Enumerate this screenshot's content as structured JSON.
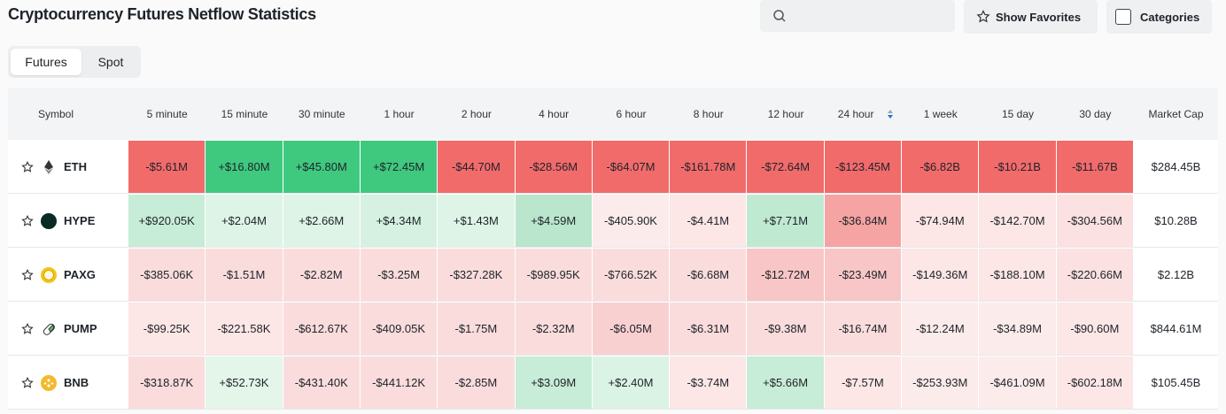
{
  "header": {
    "title": "Cryptocurrency Futures Netflow Statistics",
    "favorites_button": "Show Favorites",
    "categories_button": "Categories"
  },
  "tabs": [
    "Futures",
    "Spot"
  ],
  "table": {
    "columns": [
      "Symbol",
      "5 minute",
      "15 minute",
      "30 minute",
      "1 hour",
      "2 hour",
      "4 hour",
      "6 hour",
      "8 hour",
      "12 hour",
      "24 hour",
      "1 week",
      "15 day",
      "30 day",
      "Market Cap"
    ],
    "rows": [
      {
        "symbol": "ETH",
        "cells": [
          "-$5.61M",
          "+$16.80M",
          "+$45.80M",
          "+$72.45M",
          "-$44.70M",
          "-$28.56M",
          "-$64.07M",
          "-$161.78M",
          "-$72.64M",
          "-$123.45M",
          "-$6.82B",
          "-$10.21B",
          "-$11.67B"
        ],
        "market_cap": "$284.45B",
        "colors": [
          "#f26b6b",
          "#3fc97f",
          "#3fc97f",
          "#3fc97f",
          "#f26b6b",
          "#f26b6b",
          "#f26b6b",
          "#f26b6b",
          "#f26b6b",
          "#f26b6b",
          "#f26b6b",
          "#f26b6b",
          "#f26b6b"
        ]
      },
      {
        "symbol": "HYPE",
        "cells": [
          "+$920.05K",
          "+$2.04M",
          "+$2.66M",
          "+$4.34M",
          "+$1.43M",
          "+$4.59M",
          "-$405.90K",
          "-$4.41M",
          "+$7.71M",
          "-$36.84M",
          "-$74.94M",
          "-$142.70M",
          "-$304.56M"
        ],
        "market_cap": "$10.28B",
        "colors": [
          "#c7ecd7",
          "#def4e7",
          "#def4e7",
          "#d6f1e1",
          "#def4e7",
          "#b9e6cc",
          "#fcebeb",
          "#fce6e6",
          "#c0e9d1",
          "#f5a3a3",
          "#fce6e6",
          "#fce6e6",
          "#fbe1e1"
        ]
      },
      {
        "symbol": "PAXG",
        "cells": [
          "-$385.06K",
          "-$1.51M",
          "-$2.82M",
          "-$3.25M",
          "-$327.28K",
          "-$989.95K",
          "-$766.52K",
          "-$6.68M",
          "-$12.72M",
          "-$23.49M",
          "-$149.36M",
          "-$188.10M",
          "-$220.66M"
        ],
        "market_cap": "$2.12B",
        "colors": [
          "#fadcdc",
          "#fadcdc",
          "#fadcdc",
          "#fadcdc",
          "#fadcdc",
          "#fadcdc",
          "#fadcdc",
          "#fadcdc",
          "#f8c6c6",
          "#f8c6c6",
          "#fce6e6",
          "#fce6e6",
          "#fbe1e1"
        ]
      },
      {
        "symbol": "PUMP",
        "cells": [
          "-$99.25K",
          "-$221.58K",
          "-$612.67K",
          "-$409.05K",
          "-$1.75M",
          "-$2.32M",
          "-$6.05M",
          "-$6.31M",
          "-$9.38M",
          "-$16.74M",
          "-$12.24M",
          "-$34.89M",
          "-$90.60M"
        ],
        "market_cap": "$844.61M",
        "colors": [
          "#fce6e6",
          "#fce6e6",
          "#fadcdc",
          "#fadcdc",
          "#fadcdc",
          "#fadcdc",
          "#f9d0d0",
          "#fadcdc",
          "#fadcdc",
          "#fadcdc",
          "#fcebeb",
          "#fcebeb",
          "#fce6e6"
        ]
      },
      {
        "symbol": "BNB",
        "cells": [
          "-$318.87K",
          "+$52.73K",
          "-$431.40K",
          "-$441.12K",
          "-$2.85M",
          "+$3.09M",
          "+$2.40M",
          "-$3.74M",
          "+$5.66M",
          "-$7.57M",
          "-$253.93M",
          "-$461.09M",
          "-$602.18M"
        ],
        "market_cap": "$105.45B",
        "colors": [
          "#fadcdc",
          "#e4f5ea",
          "#fadcdc",
          "#fadcdc",
          "#fadcdc",
          "#c7ecd7",
          "#dbf3e4",
          "#fce6e6",
          "#c7ecd7",
          "#fce6e6",
          "#fcebeb",
          "#fcebeb",
          "#fce6e6"
        ]
      }
    ]
  }
}
